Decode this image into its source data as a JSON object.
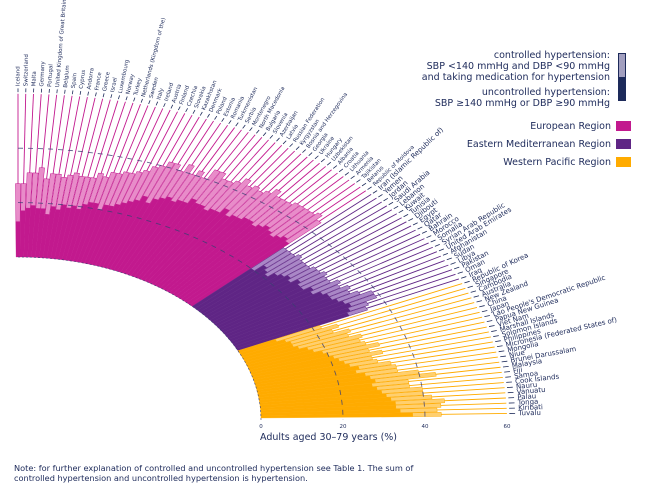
{
  "legend": {
    "controlled_line1": "controlled hypertension:",
    "controlled_line2": "SBP <140 mmHg and DBP <90 mmHg",
    "controlled_line3": "and taking medication for hypertension",
    "uncontrolled_line1": "uncontrolled hypertension:",
    "uncontrolled_line2": "SBP ≥140 mmHg or DBP ≥90 mmHg",
    "regions": [
      {
        "label": "European Region",
        "color": "#c2198e"
      },
      {
        "label": "Eastern Mediterranean Region",
        "color": "#5f2585"
      },
      {
        "label": "Western Pacific Region",
        "color": "#ffab00"
      }
    ]
  },
  "note_line1": "Note: for further explanation of controlled and uncontrolled hypertension see Table 1. The sum of",
  "note_line2": "controlled hypertension and uncontrolled hypertension is hypertension.",
  "chart_data": {
    "type": "bar",
    "subtype": "radial-stacked",
    "title": "",
    "xlabel": "Adults aged 30–79 years (%)",
    "ylabel": "",
    "xlim": [
      0,
      60
    ],
    "ticks": [
      0,
      20,
      40,
      60
    ],
    "grid": "dashed at 20 and 40",
    "legend_position": "top-right",
    "series_names": [
      "uncontrolled hypertension",
      "controlled hypertension"
    ],
    "regions": [
      {
        "name": "European Region",
        "color": "#c2198e",
        "light": "#e88cc9",
        "countries": [
          "Iceland",
          "Switzerland",
          "Malta",
          "Germany",
          "Portugal",
          "United Kingdom of Great Britain and Northern Ireland",
          "Belgium",
          "Spain",
          "Cyprus",
          "Andorra",
          "France",
          "Greece",
          "Israel",
          "Luxembourg",
          "Norway",
          "Turkey",
          "Netherlands (Kingdom of the)",
          "Sweden",
          "Italy",
          "Ireland",
          "Austria",
          "Finland",
          "Czechia",
          "Slovakia",
          "Kazakhstan",
          "Denmark",
          "Poland",
          "Estonia",
          "Romania",
          "Turkmenistan",
          "Serbia",
          "Montenegro",
          "North Macedonia",
          "Bulgaria",
          "Slovenia",
          "Azerbaijan",
          "Latvia",
          "Russian Federation",
          "Kyrgyzstan",
          "Bosnia and Herzegovina",
          "Georgia",
          "Ukraine",
          "Hungary",
          "Uzbekistan",
          "Albania",
          "Croatia",
          "Lithuania",
          "Armenia",
          "Tajikistan",
          "Belarus",
          "Republic of Moldova"
        ],
        "uncontrolled": [
          13,
          17,
          18,
          19,
          18,
          18,
          16,
          19,
          18,
          20,
          19,
          20,
          19,
          21,
          22,
          22,
          20,
          22,
          22,
          23,
          24,
          25,
          26,
          28,
          26,
          28,
          29,
          30,
          29,
          30,
          30,
          32,
          31,
          31,
          30,
          31,
          31,
          33,
          31,
          32,
          32,
          33,
          33,
          32,
          33,
          34,
          33,
          32,
          33,
          34,
          33
        ],
        "controlled": [
          14,
          10,
          13,
          12,
          15,
          11,
          15,
          12,
          12,
          11,
          13,
          11,
          12,
          10,
          11,
          10,
          14,
          12,
          13,
          12,
          12,
          12,
          13,
          12,
          16,
          14,
          11,
          13,
          11,
          12,
          10,
          12,
          13,
          11,
          12,
          12,
          14,
          10,
          13,
          11,
          12,
          13,
          11,
          12,
          11,
          11,
          12,
          13,
          12,
          12,
          11
        ]
      },
      {
        "name": "Eastern Mediterranean Region",
        "color": "#5f2585",
        "light": "#a987c6",
        "countries": [
          "Iran (Islamic Republic of)",
          "Yemen",
          "Jordan",
          "Saudi Arabia",
          "Lebanon",
          "Kuwait",
          "Tunisia",
          "Djibouti",
          "Egypt",
          "Qatar",
          "Bahrain",
          "Morocco",
          "Somalia",
          "Syrian Arab Republic",
          "United Arab Emirates",
          "Afghanistan",
          "Sudan",
          "Libya",
          "Pakistan",
          "Oman",
          "Iraq"
        ],
        "uncontrolled": [
          20,
          23,
          22,
          21,
          23,
          24,
          25,
          24,
          26,
          25,
          25,
          27,
          26,
          28,
          29,
          29,
          30,
          31,
          32,
          31,
          30
        ],
        "controlled": [
          11,
          8,
          9,
          11,
          8,
          7,
          6,
          8,
          6,
          8,
          7,
          5,
          8,
          5,
          6,
          5,
          6,
          8,
          7,
          5,
          5
        ]
      },
      {
        "name": "Western Pacific Region",
        "color": "#ffab00",
        "light": "#ffcf6e",
        "countries": [
          "Republic of Korea",
          "Singapore",
          "Cambodia",
          "Australia",
          "New Zealand",
          "China",
          "Japan",
          "Lao People's Democratic Republic",
          "Papua New Guinea",
          "Viet Nam",
          "Marshall Islands",
          "Solomon Islands",
          "Philippines",
          "Micronesia (Federated States of)",
          "Mongolia",
          "Niue",
          "Brunei Darussalam",
          "Malaysia",
          "Fiji",
          "Samoa",
          "Cook Islands",
          "Nauru",
          "Vanuatu",
          "Palau",
          "Tonga",
          "Kiribati",
          "Tuvalu"
        ],
        "uncontrolled": [
          10,
          12,
          13,
          13,
          14,
          16,
          17,
          19,
          20,
          21,
          22,
          23,
          24,
          26,
          25,
          27,
          28,
          29,
          28,
          29,
          30,
          31,
          32,
          33,
          33,
          34,
          37
        ],
        "controlled": [
          12,
          14,
          11,
          15,
          13,
          14,
          12,
          11,
          13,
          9,
          11,
          7,
          7,
          8,
          10,
          8,
          12,
          15,
          9,
          8,
          10,
          9,
          10,
          12,
          11,
          9,
          7
        ]
      }
    ]
  }
}
